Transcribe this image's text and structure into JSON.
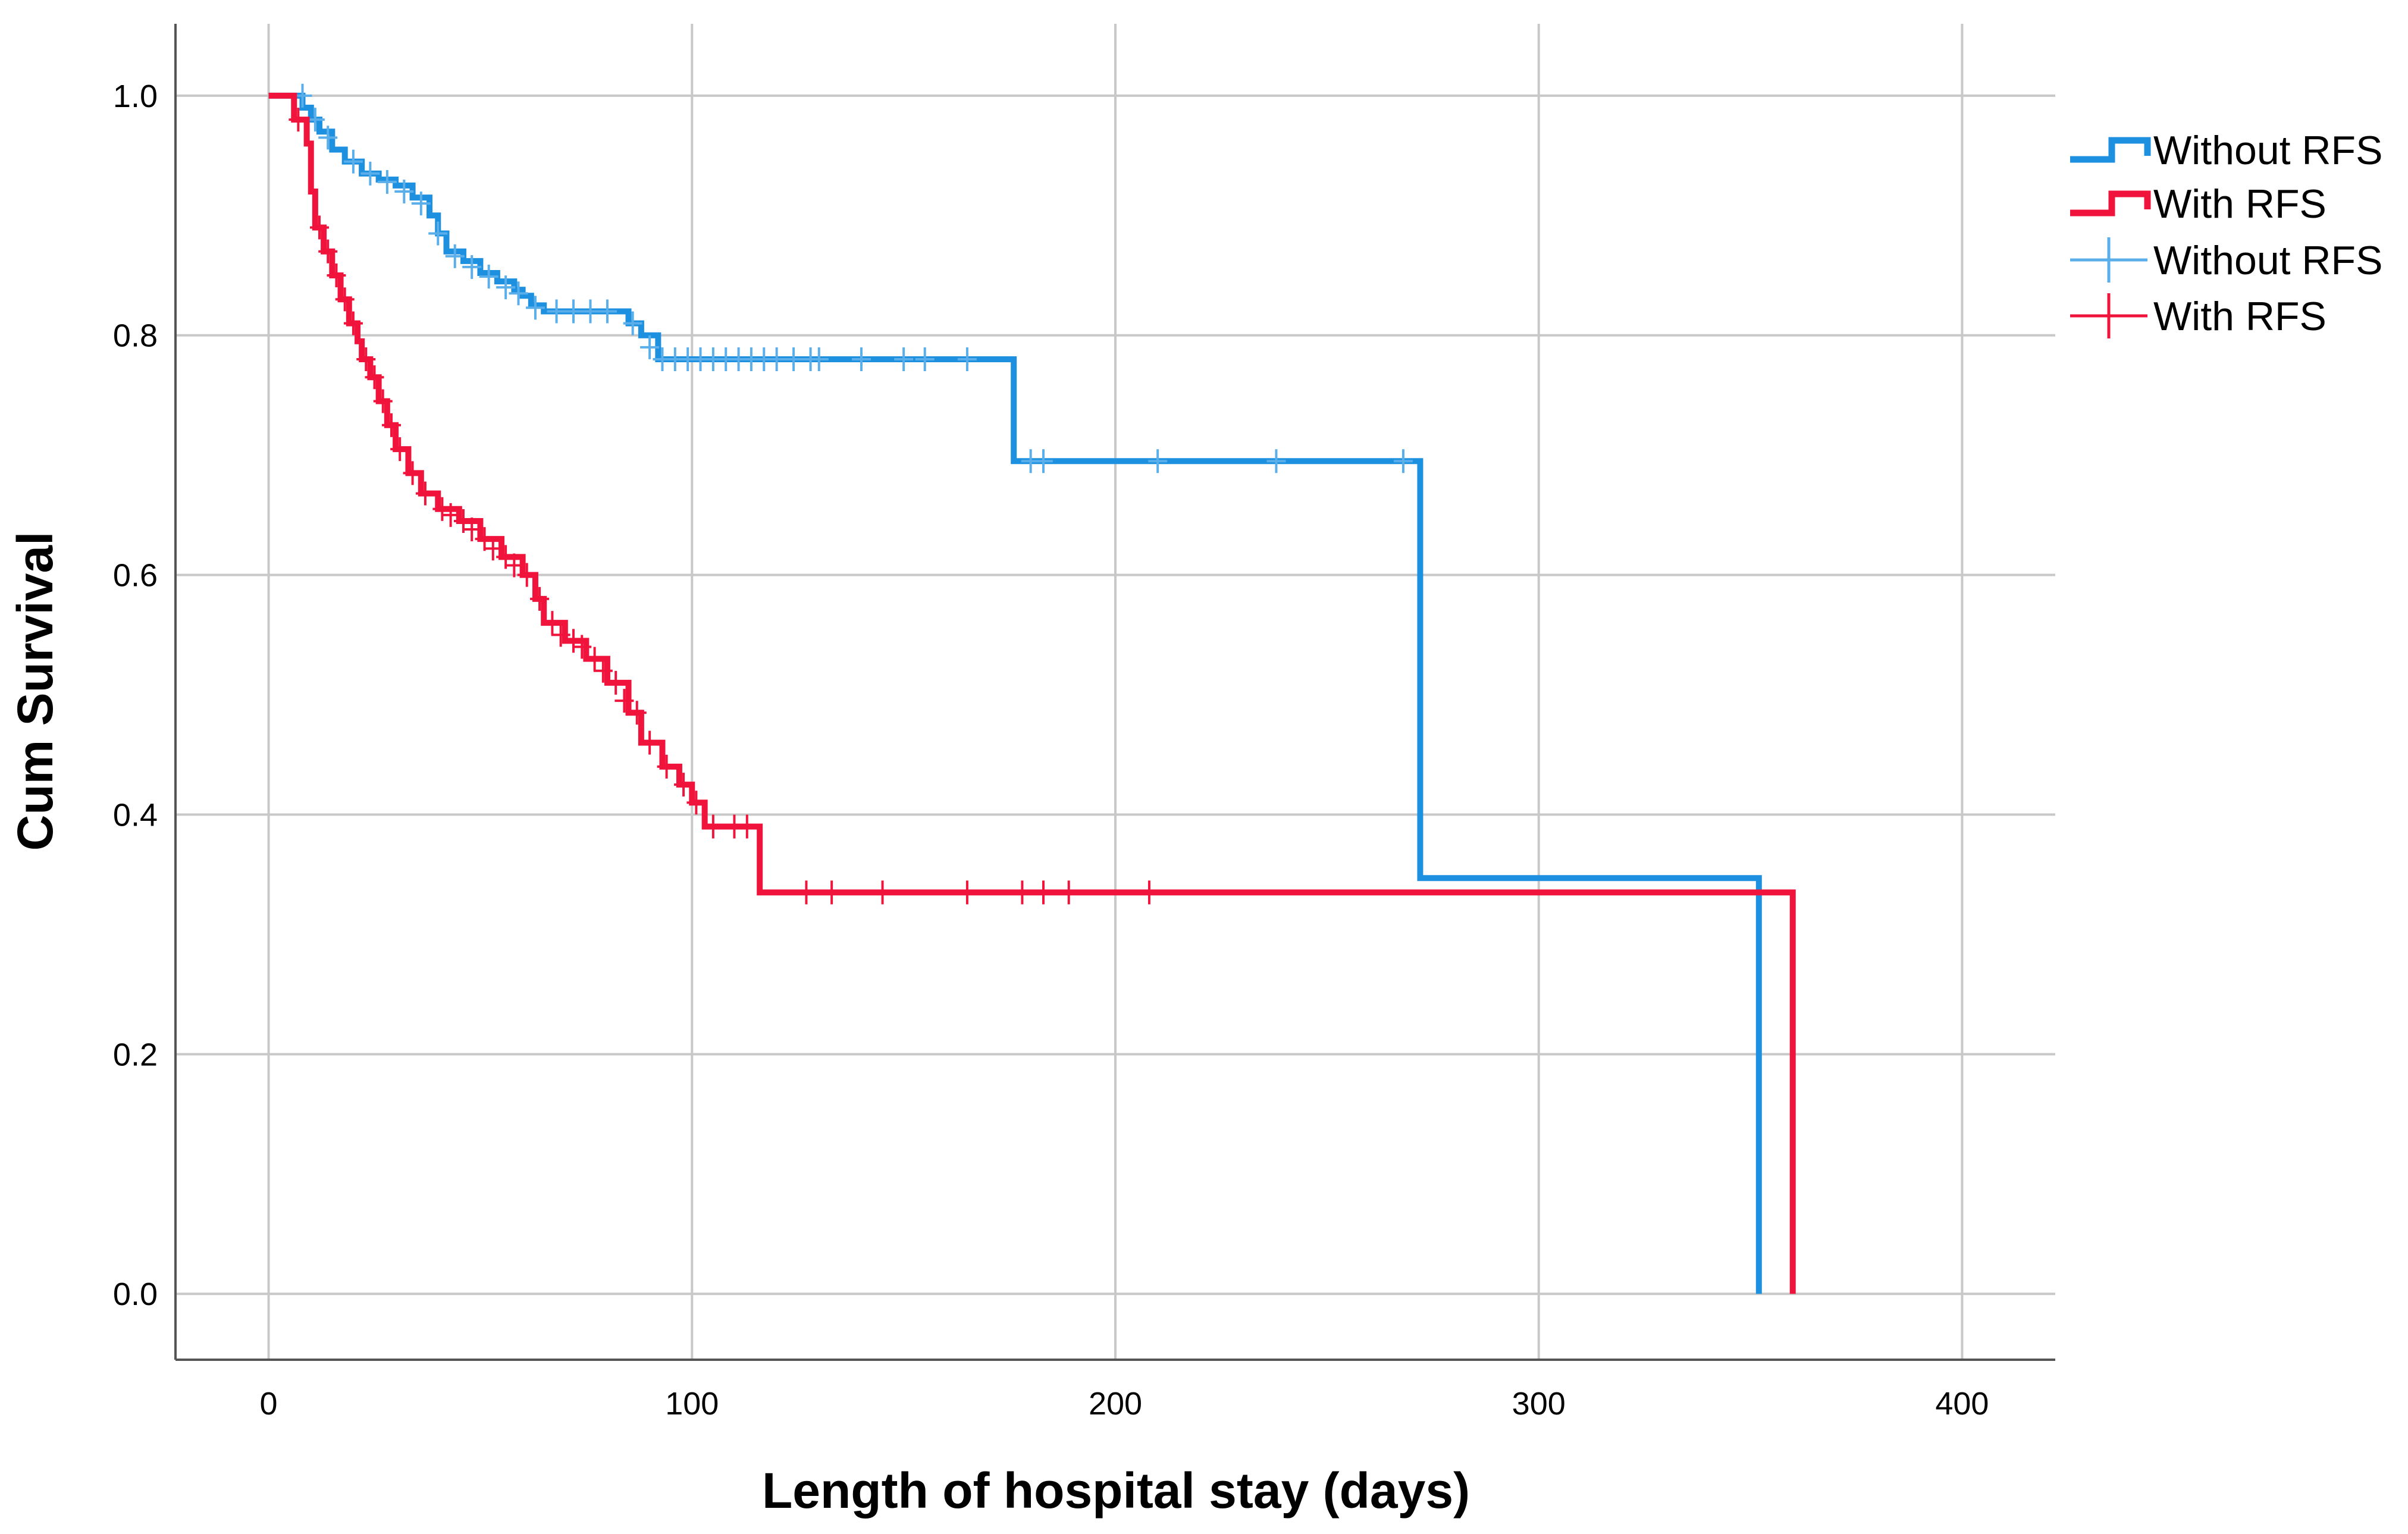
{
  "chart_data": {
    "type": "line",
    "subtype": "kaplan-meier step",
    "xlabel": "Length of hospital stay (days)",
    "ylabel": "Cum Survival",
    "xlim": [
      -22,
      422
    ],
    "ylim": [
      -0.055,
      1.06
    ],
    "x_ticks": [
      0,
      100,
      200,
      300,
      400
    ],
    "x_tick_labels": [
      "0",
      "100",
      "200",
      "300",
      "400"
    ],
    "y_ticks": [
      0.0,
      0.2,
      0.4,
      0.6,
      0.8,
      1.0
    ],
    "y_tick_labels": [
      "0.0",
      "0.2",
      "0.4",
      "0.6",
      "0.8",
      "1.0"
    ],
    "grid": true,
    "legend_position": "top-right, outside plot",
    "legend": [
      {
        "label": "Without RFS",
        "kind": "survival-line",
        "color": "#1e90e0"
      },
      {
        "label": "With RFS",
        "kind": "survival-line",
        "color": "#f0143c"
      },
      {
        "label": "Without RFS",
        "kind": "censored-marker",
        "color": "#5aaeea"
      },
      {
        "label": "With RFS",
        "kind": "censored-marker",
        "color": "#f0143c"
      }
    ],
    "series": [
      {
        "name": "Without RFS",
        "color": "#1e90e0",
        "marker_color": "#5aaeea",
        "steps": [
          [
            0,
            1.0
          ],
          [
            7,
            1.0
          ],
          [
            8,
            0.99
          ],
          [
            10,
            0.98
          ],
          [
            12,
            0.97
          ],
          [
            15,
            0.955
          ],
          [
            18,
            0.945
          ],
          [
            22,
            0.935
          ],
          [
            26,
            0.93
          ],
          [
            30,
            0.925
          ],
          [
            34,
            0.915
          ],
          [
            38,
            0.9
          ],
          [
            40,
            0.885
          ],
          [
            42,
            0.87
          ],
          [
            46,
            0.862
          ],
          [
            50,
            0.852
          ],
          [
            54,
            0.845
          ],
          [
            58,
            0.838
          ],
          [
            60,
            0.833
          ],
          [
            62,
            0.825
          ],
          [
            65,
            0.82
          ],
          [
            80,
            0.82
          ],
          [
            85,
            0.81
          ],
          [
            88,
            0.8
          ],
          [
            92,
            0.78
          ],
          [
            175,
            0.78
          ],
          [
            176,
            0.695
          ],
          [
            271,
            0.695
          ],
          [
            272,
            0.347
          ],
          [
            351,
            0.347
          ],
          [
            352,
            0.0
          ]
        ],
        "censored": [
          [
            8,
            1.0
          ],
          [
            11,
            0.98
          ],
          [
            14,
            0.965
          ],
          [
            20,
            0.945
          ],
          [
            24,
            0.935
          ],
          [
            28,
            0.928
          ],
          [
            32,
            0.92
          ],
          [
            36,
            0.91
          ],
          [
            40,
            0.885
          ],
          [
            44,
            0.866
          ],
          [
            48,
            0.857
          ],
          [
            52,
            0.849
          ],
          [
            56,
            0.84
          ],
          [
            59,
            0.835
          ],
          [
            63,
            0.823
          ],
          [
            68,
            0.82
          ],
          [
            72,
            0.82
          ],
          [
            76,
            0.82
          ],
          [
            80,
            0.82
          ],
          [
            86,
            0.81
          ],
          [
            90,
            0.79
          ],
          [
            93,
            0.78
          ],
          [
            96,
            0.78
          ],
          [
            99,
            0.78
          ],
          [
            102,
            0.78
          ],
          [
            105,
            0.78
          ],
          [
            108,
            0.78
          ],
          [
            111,
            0.78
          ],
          [
            114,
            0.78
          ],
          [
            117,
            0.78
          ],
          [
            120,
            0.78
          ],
          [
            124,
            0.78
          ],
          [
            128,
            0.78
          ],
          [
            130,
            0.78
          ],
          [
            140,
            0.78
          ],
          [
            150,
            0.78
          ],
          [
            155,
            0.78
          ],
          [
            165,
            0.78
          ],
          [
            180,
            0.695
          ],
          [
            183,
            0.695
          ],
          [
            210,
            0.695
          ],
          [
            238,
            0.695
          ],
          [
            268,
            0.695
          ]
        ]
      },
      {
        "name": "With RFS",
        "color": "#f0143c",
        "marker_color": "#f0143c",
        "steps": [
          [
            0,
            1.0
          ],
          [
            5,
            1.0
          ],
          [
            6,
            0.98
          ],
          [
            9,
            0.96
          ],
          [
            10,
            0.92
          ],
          [
            11,
            0.89
          ],
          [
            13,
            0.87
          ],
          [
            15,
            0.85
          ],
          [
            17,
            0.83
          ],
          [
            19,
            0.81
          ],
          [
            21,
            0.795
          ],
          [
            22,
            0.78
          ],
          [
            24,
            0.765
          ],
          [
            26,
            0.745
          ],
          [
            28,
            0.725
          ],
          [
            30,
            0.705
          ],
          [
            33,
            0.685
          ],
          [
            36,
            0.668
          ],
          [
            40,
            0.655
          ],
          [
            45,
            0.645
          ],
          [
            50,
            0.63
          ],
          [
            55,
            0.615
          ],
          [
            60,
            0.6
          ],
          [
            63,
            0.58
          ],
          [
            65,
            0.56
          ],
          [
            70,
            0.545
          ],
          [
            75,
            0.53
          ],
          [
            80,
            0.51
          ],
          [
            85,
            0.485
          ],
          [
            88,
            0.46
          ],
          [
            93,
            0.44
          ],
          [
            97,
            0.425
          ],
          [
            100,
            0.41
          ],
          [
            103,
            0.39
          ],
          [
            114,
            0.39
          ],
          [
            116,
            0.335
          ],
          [
            359,
            0.335
          ],
          [
            360,
            0.0
          ]
        ],
        "censored": [
          [
            7,
            0.98
          ],
          [
            12,
            0.89
          ],
          [
            14,
            0.87
          ],
          [
            16,
            0.85
          ],
          [
            18,
            0.83
          ],
          [
            20,
            0.81
          ],
          [
            23,
            0.78
          ],
          [
            25,
            0.765
          ],
          [
            27,
            0.745
          ],
          [
            29,
            0.725
          ],
          [
            31,
            0.705
          ],
          [
            34,
            0.685
          ],
          [
            37,
            0.668
          ],
          [
            41,
            0.655
          ],
          [
            43,
            0.65
          ],
          [
            46,
            0.645
          ],
          [
            48,
            0.638
          ],
          [
            51,
            0.63
          ],
          [
            53,
            0.622
          ],
          [
            56,
            0.615
          ],
          [
            58,
            0.608
          ],
          [
            61,
            0.6
          ],
          [
            64,
            0.58
          ],
          [
            67,
            0.56
          ],
          [
            69,
            0.55
          ],
          [
            72,
            0.545
          ],
          [
            74,
            0.54
          ],
          [
            77,
            0.53
          ],
          [
            79,
            0.52
          ],
          [
            82,
            0.51
          ],
          [
            84,
            0.495
          ],
          [
            87,
            0.485
          ],
          [
            90,
            0.46
          ],
          [
            94,
            0.44
          ],
          [
            98,
            0.425
          ],
          [
            101,
            0.41
          ],
          [
            105,
            0.39
          ],
          [
            110,
            0.39
          ],
          [
            113,
            0.39
          ],
          [
            127,
            0.335
          ],
          [
            133,
            0.335
          ],
          [
            145,
            0.335
          ],
          [
            165,
            0.335
          ],
          [
            178,
            0.335
          ],
          [
            183,
            0.335
          ],
          [
            189,
            0.335
          ],
          [
            208,
            0.335
          ]
        ]
      }
    ]
  }
}
